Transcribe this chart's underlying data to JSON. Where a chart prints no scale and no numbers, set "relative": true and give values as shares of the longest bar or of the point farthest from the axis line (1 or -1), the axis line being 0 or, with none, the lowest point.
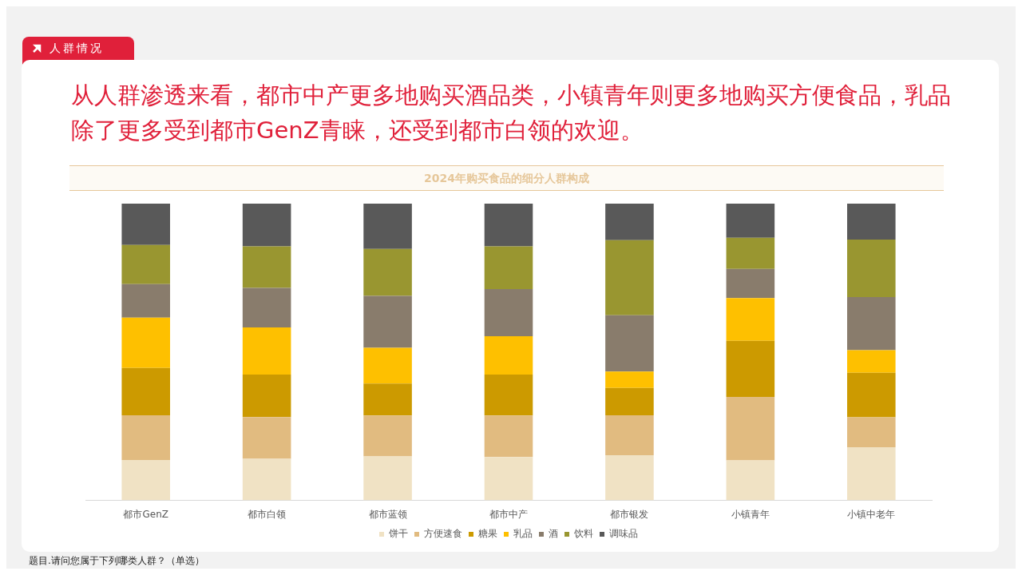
{
  "chart_data": {
    "type": "bar",
    "title": "从人群渗透来看，都市中产更多地购买酒品类，小镇青年则更多地购买方便食品，乳品除了更多受到都市GenZ青睐，还受到都市白领的欢迎。",
    "subtitle": "2024年购买食品的细分人群构成",
    "categories": [
      "都市GenZ",
      "都市白领",
      "都市蓝领",
      "都市中产",
      "都市银发",
      "小镇青年",
      "小镇中老年"
    ],
    "stacked": true,
    "relative": true,
    "legend": "bottom",
    "grid": false,
    "series": [
      {
        "name": "饼干",
        "color": "#f0e2c4",
        "values": [
          0.136,
          0.14,
          0.148,
          0.146,
          0.152,
          0.135,
          0.179
        ]
      },
      {
        "name": "方便速食",
        "color": "#e1bb80",
        "values": [
          0.151,
          0.141,
          0.138,
          0.14,
          0.135,
          0.214,
          0.101
        ]
      },
      {
        "name": "糖果",
        "color": "#cc9a00",
        "values": [
          0.159,
          0.143,
          0.108,
          0.138,
          0.092,
          0.189,
          0.15
        ]
      },
      {
        "name": "乳品",
        "color": "#fec000",
        "values": [
          0.17,
          0.159,
          0.12,
          0.129,
          0.055,
          0.144,
          0.076
        ]
      },
      {
        "name": "酒",
        "color": "#897c6c",
        "values": [
          0.113,
          0.133,
          0.175,
          0.159,
          0.19,
          0.098,
          0.179
        ]
      },
      {
        "name": "饮料",
        "color": "#999630",
        "values": [
          0.132,
          0.14,
          0.158,
          0.144,
          0.253,
          0.105,
          0.194
        ]
      },
      {
        "name": "调味品",
        "color": "#595959",
        "values": [
          0.139,
          0.144,
          0.153,
          0.144,
          0.123,
          0.115,
          0.121
        ]
      }
    ],
    "annotations": [
      "人群情况",
      "题目.请问您属于下列哪类人群？（单选）"
    ]
  }
}
